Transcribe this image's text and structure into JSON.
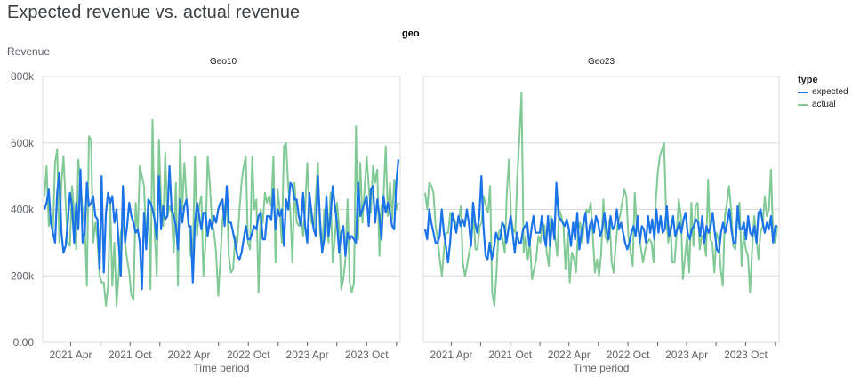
{
  "chart_data": {
    "type": "line",
    "title": "Expected revenue vs. actual revenue",
    "facet_variable": "geo",
    "ylabel": "Revenue",
    "xlabel": "Time period",
    "ylim": [
      0,
      800
    ],
    "y_unit_suffix": "k",
    "y_ticks": [
      {
        "value": 0,
        "label": "0.00"
      },
      {
        "value": 200,
        "label": "200k"
      },
      {
        "value": 400,
        "label": "400k"
      },
      {
        "value": 600,
        "label": "600k"
      },
      {
        "value": 800,
        "label": "800k"
      }
    ],
    "x_range": [
      "2021-01-10",
      "2024-01-07"
    ],
    "x_ticks": [
      {
        "date": "2021-04-01",
        "label": "2021 Apr"
      },
      {
        "date": "2021-10-01",
        "label": "2021 Oct"
      },
      {
        "date": "2022-04-01",
        "label": "2022 Apr"
      },
      {
        "date": "2022-10-01",
        "label": "2022 Oct"
      },
      {
        "date": "2023-04-01",
        "label": "2023 Apr"
      },
      {
        "date": "2023-10-01",
        "label": "2023 Oct"
      }
    ],
    "grid": true,
    "legend": {
      "title": "type",
      "placement": "right"
    },
    "series_colors": {
      "expected": "#1a73e8",
      "actual": "#81c995"
    },
    "facets": [
      {
        "name": "Geo10",
        "series": [
          {
            "name": "expected",
            "values": [
              400,
              420,
              460,
              360,
              330,
              300,
              450,
              510,
              330,
              270,
              290,
              360,
              450,
              410,
              300,
              420,
              340,
              520,
              300,
              330,
              480,
              410,
              420,
              440,
              380,
              370,
              220,
              500,
              210,
              390,
              450,
              420,
              440,
              360,
              400,
              300,
              200,
              470,
              300,
              350,
              420,
              380,
              360,
              330,
              340,
              300,
              160,
              390,
              280,
              430,
              420,
              400,
              370,
              310,
              500,
              340,
              410,
              370,
              380,
              530,
              400,
              380,
              350,
              280,
              430,
              360,
              410,
              430,
              350,
              350,
              180,
              360,
              420,
              380,
              340,
              390,
              390,
              320,
              370,
              340,
              380,
              360,
              400,
              420,
              430,
              350,
              470,
              360,
              360,
              330,
              300,
              260,
              250,
              270,
              310,
              350,
              310,
              310,
              330,
              350,
              340,
              380,
              390,
              310,
              310,
              380,
              380,
              370,
              460,
              340,
              400,
              380,
              400,
              290,
              430,
              400,
              480,
              470,
              430,
              430,
              380,
              350,
              450,
              350,
              300,
              450,
              390,
              340,
              320,
              500,
              370,
              270,
              310,
              440,
              320,
              380,
              470,
              410,
              360,
              270,
              330,
              350,
              260,
              330,
              310,
              320,
              310,
              300,
              480,
              380,
              400,
              420,
              440,
              350,
              460,
              470,
              360,
              430,
              380,
              310,
              440,
              390,
              420,
              390,
              350,
              340,
              480,
              550
            ]
          },
          {
            "name": "actual",
            "values": [
              440,
              530,
              350,
              380,
              330,
              540,
              580,
              300,
              480,
              560,
              420,
              300,
              290,
              470,
              390,
              280,
              550,
              480,
              400,
              350,
              170,
              620,
              610,
              300,
              360,
              310,
              200,
              180,
              180,
              110,
              170,
              420,
              170,
              300,
              110,
              200,
              330,
              360,
              300,
              250,
              210,
              140,
              130,
              420,
              330,
              530,
              500,
              470,
              300,
              420,
              160,
              670,
              330,
              200,
              610,
              420,
              350,
              570,
              380,
              410,
              390,
              270,
              480,
              170,
              610,
              400,
              540,
              430,
              370,
              260,
              260,
              560,
              320,
              410,
              440,
              200,
              300,
              560,
              480,
              360,
              330,
              270,
              140,
              250,
              370,
              400,
              450,
              260,
              210,
              220,
              320,
              300,
              400,
              480,
              530,
              560,
              300,
              280,
              560,
              400,
              430,
              150,
              400,
              360,
              450,
              420,
              440,
              410,
              560,
              240,
              460,
              400,
              300,
              590,
              600,
              470,
              390,
              240,
              480,
              360,
              350,
              380,
              320,
              400,
              540,
              400,
              360,
              350,
              440,
              540,
              330,
              280,
              400,
              380,
              300,
              450,
              240,
              310,
              420,
              350,
              160,
              190,
              250,
              430,
              180,
              150,
              180,
              650,
              310,
              540,
              360,
              460,
              560,
              470,
              390,
              530,
              480,
              520,
              260,
              410,
              440,
              590,
              380,
              480,
              370,
              490,
              400,
              420
            ]
          }
        ]
      },
      {
        "name": "Geo23",
        "series": [
          {
            "name": "expected",
            "values": [
              340,
              310,
              400,
              360,
              330,
              300,
              300,
              320,
              400,
              330,
              290,
              240,
              300,
              390,
              360,
              330,
              380,
              350,
              370,
              350,
              400,
              360,
              290,
              420,
              360,
              330,
              380,
              500,
              350,
              260,
              250,
              300,
              250,
              280,
              330,
              310,
              310,
              360,
              350,
              300,
              340,
              380,
              330,
              270,
              330,
              300,
              300,
              340,
              350,
              360,
              290,
              340,
              380,
              330,
              330,
              330,
              380,
              320,
              290,
              380,
              290,
              370,
              310,
              480,
              380,
              370,
              360,
              350,
              370,
              340,
              290,
              360,
              310,
              390,
              280,
              330,
              360,
              390,
              300,
              350,
              370,
              330,
              380,
              360,
              320,
              340,
              390,
              340,
              310,
              380,
              340,
              350,
              400,
              340,
              360,
              330,
              300,
              280,
              300,
              330,
              350,
              320,
              380,
              300,
              350,
              340,
              300,
              380,
              330,
              370,
              310,
              400,
              330,
              380,
              330,
              340,
              410,
              320,
              340,
              380,
              320,
              340,
              360,
              330,
              370,
              390,
              330,
              310,
              340,
              350,
              370,
              360,
              320,
              380,
              300,
              350,
              330,
              350,
              390,
              330,
              280,
              270,
              330,
              360,
              330,
              360,
              400,
              340,
              300,
              300,
              410,
              340,
              340,
              360,
              310,
              380,
              330,
              320,
              350,
              300,
              390,
              400,
              360,
              330,
              360,
              340,
              380,
              300,
              350,
              350
            ]
          },
          {
            "name": "actual",
            "values": [
              450,
              400,
              480,
              470,
              450,
              350,
              310,
              250,
              200,
              280,
              330,
              330,
              390,
              380,
              370,
              350,
              370,
              410,
              240,
              200,
              230,
              270,
              300,
              390,
              280,
              280,
              350,
              360,
              440,
              410,
              390,
              470,
              150,
              110,
              200,
              330,
              340,
              310,
              270,
              450,
              550,
              380,
              340,
              330,
              500,
              620,
              750,
              270,
              320,
              250,
              300,
              190,
              220,
              250,
              320,
              300,
              360,
              350,
              270,
              230,
              380,
              360,
              320,
              260,
              400,
              380,
              350,
              220,
              330,
              180,
              270,
              250,
              210,
              340,
              360,
              300,
              370,
              400,
              390,
              420,
              320,
              210,
              250,
              200,
              270,
              430,
              320,
              300,
              370,
              240,
              210,
              300,
              360,
              380,
              420,
              460,
              440,
              320,
              270,
              230,
              450,
              340,
              330,
              280,
              240,
              280,
              300,
              310,
              300,
              240,
              420,
              510,
              560,
              580,
              600,
              380,
              300,
              350,
              240,
              240,
              330,
              430,
              380,
              190,
              260,
              320,
              210,
              420,
              290,
              410,
              420,
              280,
              320,
              310,
              260,
              490,
              310,
              300,
              210,
              330,
              310,
              220,
              170,
              380,
              420,
              470,
              400,
              290,
              280,
              380,
              420,
              230,
              330,
              280,
              260,
              150,
              280,
              380,
              320,
              250,
              330,
              350,
              440,
              380,
              400,
              520,
              320,
              300,
              350
            ]
          }
        ]
      }
    ]
  }
}
